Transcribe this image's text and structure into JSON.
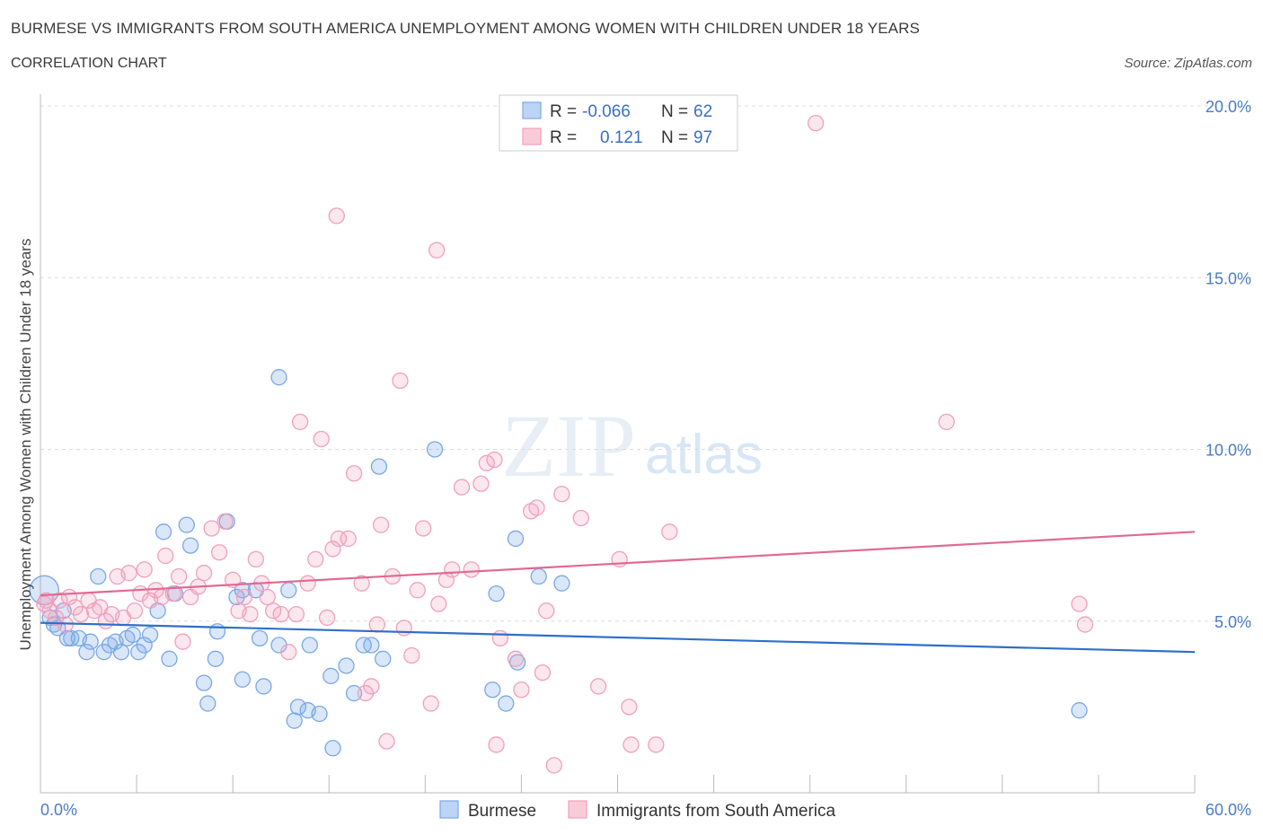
{
  "title": "BURMESE VS IMMIGRANTS FROM SOUTH AMERICA UNEMPLOYMENT AMONG WOMEN WITH CHILDREN UNDER 18 YEARS",
  "subtitle": "CORRELATION CHART",
  "source": "Source: ZipAtlas.com",
  "watermark": {
    "zip": "ZIP",
    "atlas": "atlas"
  },
  "legend": {
    "rows": [
      {
        "r_label": "R =",
        "r_value": "-0.066",
        "n_label": "N =",
        "n_value": "62"
      },
      {
        "r_label": "R =",
        "r_value": "0.121",
        "n_label": "N =",
        "n_value": "97"
      }
    ]
  },
  "bottom_legend": [
    "Burmese",
    "Immigrants from South America"
  ],
  "chart_data": {
    "type": "scatter",
    "title": "BURMESE VS IMMIGRANTS FROM SOUTH AMERICA UNEMPLOYMENT AMONG WOMEN WITH CHILDREN UNDER 18 YEARS",
    "ylabel": "Unemployment Among Women with Children Under 18 years",
    "xlabel": "",
    "xlim": [
      0,
      60
    ],
    "ylim": [
      0,
      20
    ],
    "x_tick_labels": [
      "0.0%",
      "60.0%"
    ],
    "y_ticks": [
      5,
      10,
      15,
      20
    ],
    "y_tick_labels": [
      "5.0%",
      "10.0%",
      "15.0%",
      "20.0%"
    ],
    "grid": "horizontal dashed",
    "colors": {
      "Burmese": "#7aa8e6",
      "Immigrants from South America": "#f0a0bb",
      "burmese_line": "#2f6fc9",
      "immigrants_line": "#e06a92"
    },
    "series": [
      {
        "name": "Burmese",
        "trend": {
          "x": [
            0,
            60
          ],
          "y": [
            4.95,
            4.1
          ]
        },
        "points": [
          [
            0.2,
            5.9
          ],
          [
            0.5,
            5.1
          ],
          [
            0.7,
            4.9
          ],
          [
            0.9,
            4.8
          ],
          [
            1.2,
            5.3
          ],
          [
            1.4,
            4.5
          ],
          [
            1.6,
            4.5
          ],
          [
            2.0,
            4.5
          ],
          [
            2.4,
            4.1
          ],
          [
            2.6,
            4.4
          ],
          [
            3.0,
            6.3
          ],
          [
            3.3,
            4.1
          ],
          [
            3.6,
            4.3
          ],
          [
            3.9,
            4.4
          ],
          [
            4.2,
            4.1
          ],
          [
            4.5,
            4.5
          ],
          [
            4.8,
            4.6
          ],
          [
            5.1,
            4.1
          ],
          [
            5.4,
            4.3
          ],
          [
            5.7,
            4.6
          ],
          [
            6.1,
            5.3
          ],
          [
            6.4,
            7.6
          ],
          [
            6.7,
            3.9
          ],
          [
            7.0,
            5.8
          ],
          [
            7.6,
            7.8
          ],
          [
            7.8,
            7.2
          ],
          [
            8.5,
            3.2
          ],
          [
            8.7,
            2.6
          ],
          [
            9.1,
            3.9
          ],
          [
            9.2,
            4.7
          ],
          [
            9.7,
            7.9
          ],
          [
            10.2,
            5.7
          ],
          [
            10.5,
            5.9
          ],
          [
            10.5,
            3.3
          ],
          [
            11.2,
            5.9
          ],
          [
            11.4,
            4.5
          ],
          [
            11.6,
            3.1
          ],
          [
            12.4,
            4.3
          ],
          [
            12.4,
            12.1
          ],
          [
            12.9,
            5.9
          ],
          [
            13.2,
            2.1
          ],
          [
            13.4,
            2.5
          ],
          [
            13.9,
            2.4
          ],
          [
            14.0,
            4.3
          ],
          [
            14.5,
            2.3
          ],
          [
            15.1,
            3.4
          ],
          [
            15.2,
            1.3
          ],
          [
            15.9,
            3.7
          ],
          [
            16.3,
            2.9
          ],
          [
            16.8,
            4.3
          ],
          [
            17.2,
            4.3
          ],
          [
            17.6,
            9.5
          ],
          [
            17.8,
            3.9
          ],
          [
            20.5,
            10.0
          ],
          [
            23.5,
            3.0
          ],
          [
            23.7,
            5.8
          ],
          [
            24.2,
            2.6
          ],
          [
            24.7,
            7.4
          ],
          [
            24.8,
            3.8
          ],
          [
            25.9,
            6.3
          ],
          [
            27.1,
            6.1
          ],
          [
            54.0,
            2.4
          ]
        ]
      },
      {
        "name": "Immigrants from South America",
        "trend": {
          "x": [
            0,
            60
          ],
          "y": [
            5.75,
            7.6
          ]
        },
        "points": [
          [
            0.3,
            5.6
          ],
          [
            0.5,
            5.3
          ],
          [
            0.8,
            5.1
          ],
          [
            1.0,
            5.6
          ],
          [
            1.3,
            4.9
          ],
          [
            1.5,
            5.7
          ],
          [
            1.8,
            5.4
          ],
          [
            2.1,
            5.2
          ],
          [
            2.5,
            5.6
          ],
          [
            2.8,
            5.3
          ],
          [
            3.1,
            5.4
          ],
          [
            3.4,
            5.0
          ],
          [
            3.7,
            5.2
          ],
          [
            4.0,
            6.3
          ],
          [
            4.3,
            5.1
          ],
          [
            4.6,
            6.4
          ],
          [
            4.9,
            5.3
          ],
          [
            5.2,
            5.8
          ],
          [
            5.4,
            6.5
          ],
          [
            5.7,
            5.6
          ],
          [
            6.0,
            5.9
          ],
          [
            6.3,
            5.7
          ],
          [
            6.5,
            6.9
          ],
          [
            6.9,
            5.8
          ],
          [
            7.2,
            6.3
          ],
          [
            7.4,
            4.4
          ],
          [
            7.8,
            5.7
          ],
          [
            8.2,
            6.0
          ],
          [
            8.5,
            6.4
          ],
          [
            8.9,
            7.7
          ],
          [
            9.3,
            7.0
          ],
          [
            9.6,
            7.9
          ],
          [
            10.0,
            6.2
          ],
          [
            10.3,
            5.3
          ],
          [
            10.6,
            5.7
          ],
          [
            10.9,
            5.2
          ],
          [
            11.2,
            6.8
          ],
          [
            11.5,
            6.1
          ],
          [
            11.8,
            5.7
          ],
          [
            12.1,
            5.3
          ],
          [
            12.5,
            5.2
          ],
          [
            12.9,
            4.1
          ],
          [
            13.3,
            5.2
          ],
          [
            13.5,
            10.8
          ],
          [
            13.9,
            6.1
          ],
          [
            14.3,
            6.8
          ],
          [
            14.6,
            10.3
          ],
          [
            14.9,
            5.1
          ],
          [
            15.2,
            7.1
          ],
          [
            15.5,
            7.4
          ],
          [
            15.4,
            16.8
          ],
          [
            16.0,
            7.4
          ],
          [
            16.3,
            9.3
          ],
          [
            16.7,
            6.1
          ],
          [
            16.9,
            2.9
          ],
          [
            17.2,
            3.1
          ],
          [
            17.5,
            4.9
          ],
          [
            17.7,
            7.8
          ],
          [
            18.0,
            1.5
          ],
          [
            18.3,
            6.3
          ],
          [
            18.7,
            12.0
          ],
          [
            18.9,
            4.8
          ],
          [
            19.3,
            4.0
          ],
          [
            19.6,
            5.9
          ],
          [
            19.9,
            7.7
          ],
          [
            20.3,
            2.6
          ],
          [
            20.6,
            15.8
          ],
          [
            20.7,
            5.5
          ],
          [
            21.1,
            6.2
          ],
          [
            21.4,
            6.5
          ],
          [
            21.9,
            8.9
          ],
          [
            22.4,
            6.5
          ],
          [
            22.9,
            9.0
          ],
          [
            23.2,
            9.6
          ],
          [
            23.6,
            9.7
          ],
          [
            23.7,
            1.4
          ],
          [
            23.9,
            4.5
          ],
          [
            24.7,
            3.9
          ],
          [
            25.0,
            3.0
          ],
          [
            25.5,
            8.2
          ],
          [
            25.8,
            8.3
          ],
          [
            26.1,
            3.5
          ],
          [
            26.3,
            5.3
          ],
          [
            26.7,
            0.8
          ],
          [
            27.1,
            8.7
          ],
          [
            28.1,
            8.0
          ],
          [
            29.0,
            3.1
          ],
          [
            30.1,
            6.8
          ],
          [
            30.6,
            2.5
          ],
          [
            30.7,
            1.4
          ],
          [
            32.0,
            1.4
          ],
          [
            32.7,
            7.6
          ],
          [
            40.3,
            19.5
          ],
          [
            47.1,
            10.8
          ],
          [
            54.0,
            5.5
          ],
          [
            54.3,
            4.9
          ],
          [
            0.2,
            5.5
          ]
        ]
      }
    ]
  }
}
